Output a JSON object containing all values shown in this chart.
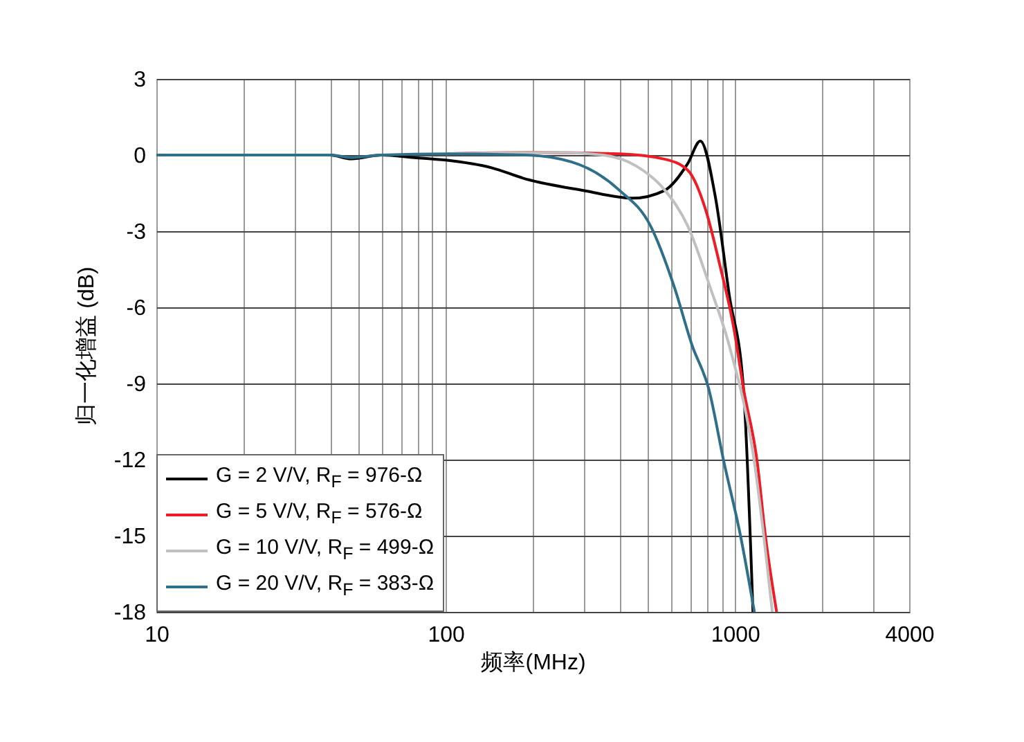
{
  "chart_data": {
    "type": "line",
    "xlabel": "频率(MHz)",
    "ylabel": "归一化增益 (dB)",
    "log": "x",
    "grid": true,
    "legend": "bottom left",
    "line_style": "solid",
    "xlim": [
      10,
      4000
    ],
    "ylim": [
      -18,
      3
    ],
    "xticks": [
      10,
      {
        "value": 20,
        "label": null
      },
      {
        "value": 30,
        "label": null
      },
      {
        "value": 40,
        "label": null
      },
      {
        "value": 50,
        "label": null
      },
      {
        "value": 60,
        "label": null
      },
      {
        "value": 70,
        "label": null
      },
      {
        "value": 80,
        "label": null
      },
      {
        "value": 90,
        "label": null
      },
      100,
      {
        "value": 200,
        "label": null
      },
      {
        "value": 300,
        "label": null
      },
      {
        "value": 400,
        "label": null
      },
      {
        "value": 500,
        "label": null
      },
      {
        "value": 600,
        "label": null
      },
      {
        "value": 700,
        "label": null
      },
      {
        "value": 800,
        "label": null
      },
      {
        "value": 900,
        "label": null
      },
      1000,
      {
        "value": 2000,
        "label": null
      },
      {
        "value": 3000,
        "label": null
      },
      4000
    ],
    "yticks": [
      3,
      0,
      -3,
      -6,
      -9,
      -12,
      -15,
      -18
    ],
    "series": [
      {
        "name": "G = 2 V/V, R$_{F}$ = 976-Ω",
        "color": "#000000",
        "x": [
          10,
          40,
          47,
          60,
          78,
          100,
          144,
          190,
          300,
          443,
          570,
          687,
          759,
          857,
          955,
          1070,
          1154
        ],
        "values": [
          0,
          0,
          -0.15,
          0,
          -0.1,
          -0.2,
          -0.5,
          -0.95,
          -1.4,
          -1.7,
          -1.4,
          -0.33,
          0.55,
          -1.7,
          -5.5,
          -9.2,
          -18
        ]
      },
      {
        "name": "G = 5 V/V, R$_{F}$ = 576-Ω",
        "color": "#ee1c25",
        "x": [
          100,
          200,
          400,
          570,
          687,
          794,
          885,
          990,
          1070,
          1194,
          1274,
          1393
        ],
        "values": [
          0.05,
          0.1,
          0.05,
          -0.16,
          -0.6,
          -2.2,
          -4.3,
          -6.8,
          -9.2,
          -12.1,
          -15,
          -18
        ]
      },
      {
        "name": "G = 10 V/V, R$_{F}$ = 499-Ω",
        "color": "#c0c0c0",
        "x": [
          100,
          250,
          350,
          457,
          570,
          687,
          820,
          955,
          1167,
          1346
        ],
        "values": [
          0.05,
          0.1,
          0,
          -0.44,
          -1.36,
          -2.8,
          -5.2,
          -7.5,
          -12.1,
          -18
        ]
      },
      {
        "name": "G = 20 V/V, R$_{F}$ = 383-Ω",
        "color": "#2f6f8a",
        "x": [
          10,
          40,
          47,
          60,
          100,
          189,
          272,
          396,
          511,
          617,
          711,
          811,
          916,
          1045,
          1167
        ],
        "values": [
          0,
          0,
          -0.1,
          0,
          0.05,
          0,
          -0.27,
          -1.36,
          -2.8,
          -5.2,
          -7.5,
          -9.2,
          -12.1,
          -15,
          -18
        ]
      }
    ]
  }
}
